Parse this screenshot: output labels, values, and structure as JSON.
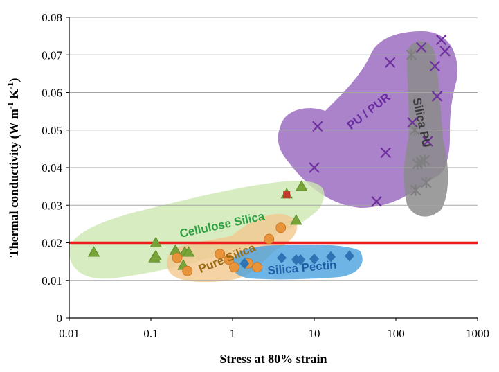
{
  "chart_data": {
    "type": "scatter",
    "title": "",
    "xlabel": "Stress at 80% strain",
    "ylabel_main": "Thermal conductivity (W m",
    "ylabel_sup1": "-1",
    "ylabel_mid": " K",
    "ylabel_sup2": "-1",
    "ylabel_end": ")",
    "x_scale": "log",
    "xlim": [
      0.01,
      1000
    ],
    "ylim": [
      0,
      0.08
    ],
    "x_ticks": [
      "0.01",
      "0.1",
      "1",
      "10",
      "100",
      "1000"
    ],
    "y_ticks": [
      "0",
      "0.01",
      "0.02",
      "0.03",
      "0.04",
      "0.05",
      "0.06",
      "0.07",
      "0.08"
    ],
    "grid": "horizontal",
    "reference_line": {
      "y": 0.02,
      "color": "#ee1c1c"
    },
    "regions": [
      {
        "name": "PU / PUR",
        "color": "#8e5ab8"
      },
      {
        "name": "Silica PU",
        "color": "#8c8c8c"
      },
      {
        "name": "Cellulose Silica",
        "color": "#cde7b0"
      },
      {
        "name": "Pure Silica",
        "color": "#f3c88f"
      },
      {
        "name": "Silica Pectin",
        "color": "#4aa3de"
      }
    ],
    "series": [
      {
        "name": "PU / PUR",
        "marker": "x",
        "color": "#7030a0",
        "points": [
          [
            11,
            0.051
          ],
          [
            10,
            0.04
          ],
          [
            58,
            0.031
          ],
          [
            75,
            0.044
          ],
          [
            85,
            0.068
          ],
          [
            205,
            0.072
          ],
          [
            360,
            0.074
          ],
          [
            400,
            0.071
          ],
          [
            300,
            0.067
          ],
          [
            320,
            0.059
          ],
          [
            245,
            0.047
          ],
          [
            160,
            0.052
          ]
        ]
      },
      {
        "name": "Silica PU",
        "marker": "asterisk",
        "color": "#7f7f7f",
        "points": [
          [
            155,
            0.07
          ],
          [
            185,
            0.041
          ],
          [
            205,
            0.0415
          ],
          [
            225,
            0.042
          ],
          [
            175,
            0.034
          ],
          [
            235,
            0.036
          ],
          [
            170,
            0.05
          ]
        ]
      },
      {
        "name": "Cellulose Silica",
        "marker": "triangle",
        "color": "#77a339",
        "points": [
          [
            0.02,
            0.0175
          ],
          [
            0.11,
            0.016
          ],
          [
            0.115,
            0.0165
          ],
          [
            0.115,
            0.02
          ],
          [
            0.2,
            0.018
          ],
          [
            0.26,
            0.0175
          ],
          [
            0.29,
            0.0175
          ],
          [
            4.6,
            0.033
          ],
          [
            6.0,
            0.026
          ],
          [
            7.0,
            0.035
          ],
          [
            0.25,
            0.014
          ]
        ]
      },
      {
        "name": "Pure Silica",
        "marker": "circle",
        "color": "#e8943a",
        "points": [
          [
            0.21,
            0.016
          ],
          [
            0.28,
            0.0125
          ],
          [
            0.7,
            0.017
          ],
          [
            0.9,
            0.0155
          ],
          [
            2.8,
            0.021
          ],
          [
            3.9,
            0.024
          ],
          [
            1.05,
            0.0135
          ],
          [
            1.55,
            0.0145
          ],
          [
            2.0,
            0.0135
          ]
        ]
      },
      {
        "name": "Silica Pectin",
        "marker": "diamond",
        "color": "#2e74b5",
        "points": [
          [
            1.4,
            0.0145
          ],
          [
            4.0,
            0.016
          ],
          [
            6.0,
            0.0155
          ],
          [
            6.8,
            0.0155
          ],
          [
            10.0,
            0.0157
          ],
          [
            16.0,
            0.0163
          ],
          [
            27.0,
            0.0165
          ]
        ]
      },
      {
        "name": "",
        "marker": "square",
        "color": "#c0392b",
        "points": [
          [
            4.6,
            0.0328
          ]
        ]
      }
    ]
  }
}
